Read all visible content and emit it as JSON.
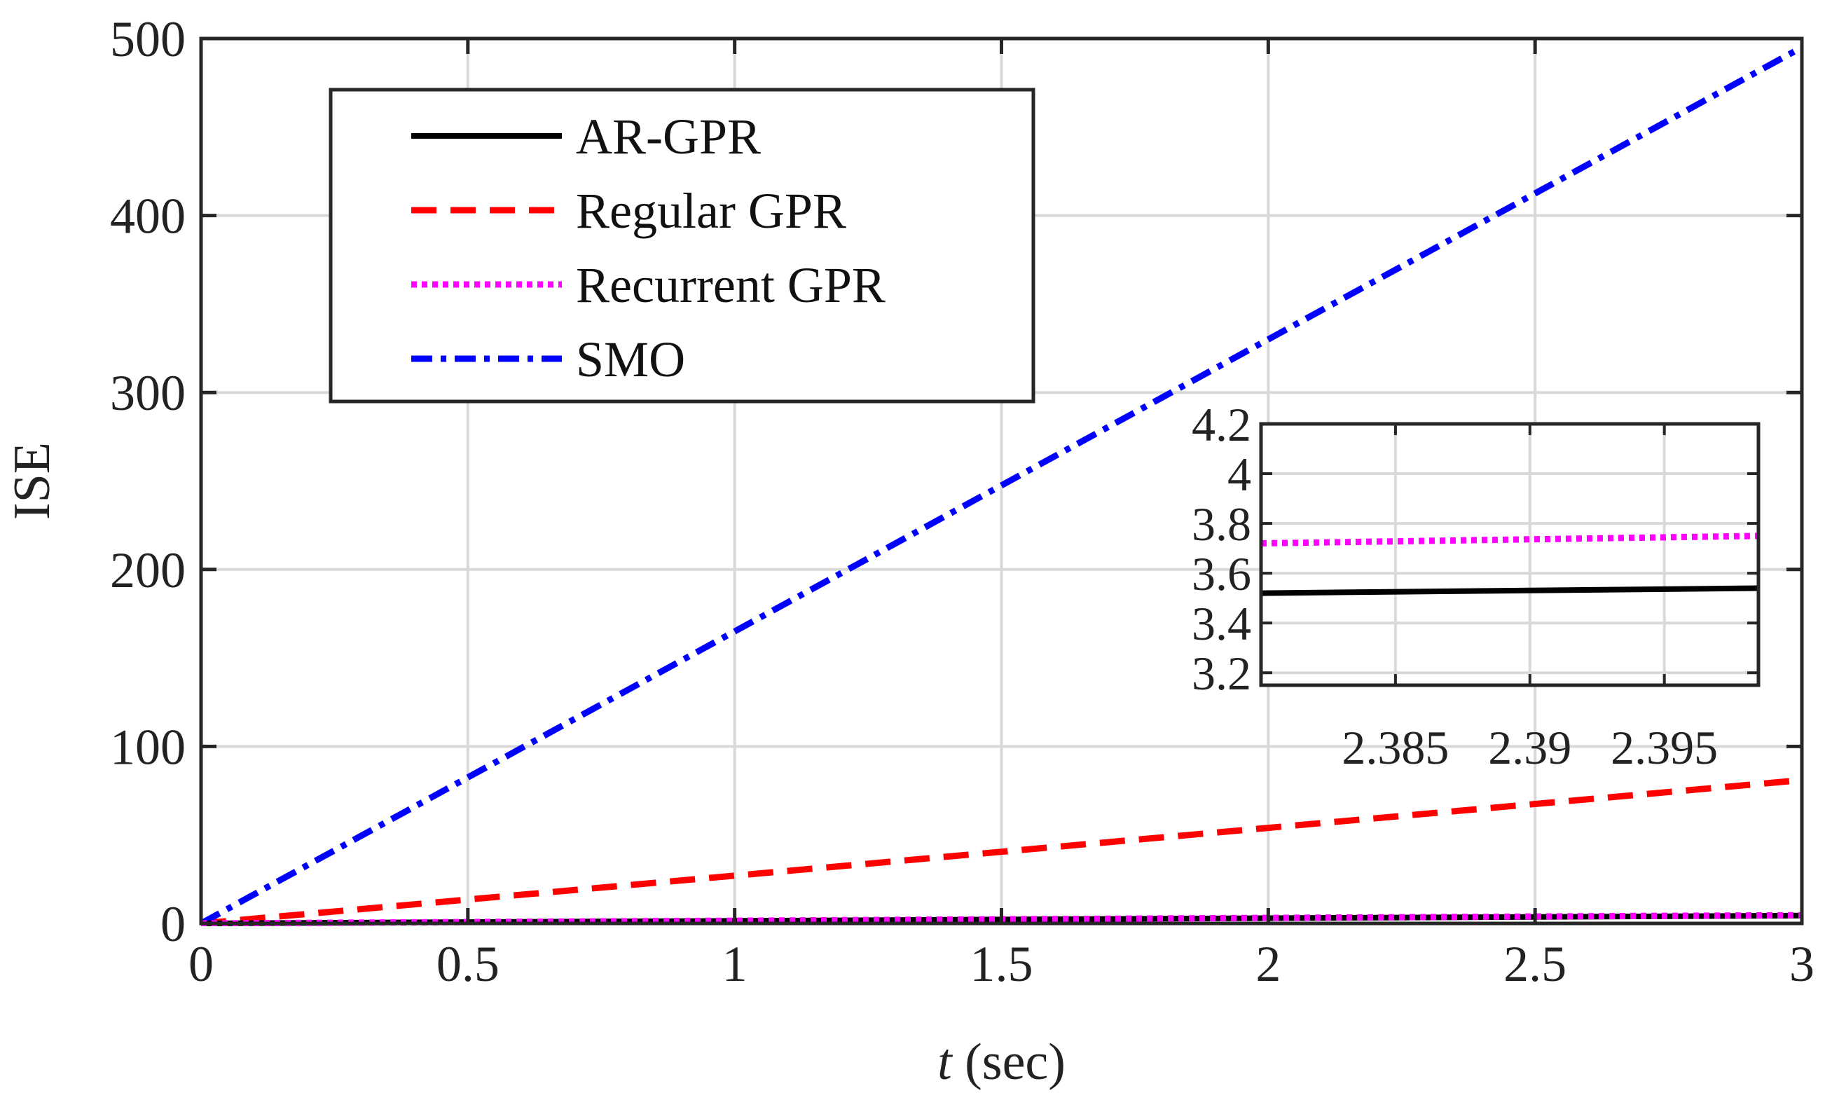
{
  "chart_data": {
    "type": "line",
    "title": "",
    "xlabel": {
      "italic": "t",
      "rest": " (sec)"
    },
    "ylabel": "ISE",
    "xlim": [
      0,
      3
    ],
    "ylim": [
      0,
      500
    ],
    "xticks": [
      0,
      0.5,
      1,
      1.5,
      2,
      2.5,
      3
    ],
    "xtick_labels": [
      "0",
      "0.5",
      "1",
      "1.5",
      "2",
      "2.5",
      "3"
    ],
    "yticks": [
      0,
      100,
      200,
      300,
      400,
      500
    ],
    "ytick_labels": [
      "0",
      "100",
      "200",
      "300",
      "400",
      "500"
    ],
    "grid": true,
    "legend_position": "top-left",
    "series": [
      {
        "name": "AR-GPR",
        "color": "#000000",
        "style": "solid",
        "x": [
          0,
          0.5,
          1,
          1.5,
          2,
          2.5,
          3
        ],
        "y": [
          0,
          0.74,
          1.48,
          2.22,
          2.96,
          3.7,
          4.44
        ]
      },
      {
        "name": "Regular GPR",
        "color": "#ff0000",
        "style": "dashed",
        "x": [
          0,
          0.5,
          1,
          1.5,
          2,
          2.5,
          3
        ],
        "y": [
          0,
          13.5,
          27,
          40.5,
          54,
          67.5,
          81
        ]
      },
      {
        "name": "Recurrent GPR",
        "color": "#ff00ff",
        "style": "dotted",
        "x": [
          0,
          0.5,
          1,
          1.5,
          2,
          2.5,
          3
        ],
        "y": [
          0,
          0.78,
          1.56,
          2.34,
          3.12,
          3.9,
          4.68
        ]
      },
      {
        "name": "SMO",
        "color": "#0000ff",
        "style": "dashdot",
        "x": [
          0,
          0.5,
          1,
          1.5,
          2,
          2.5,
          3
        ],
        "y": [
          0,
          82.5,
          165,
          247.5,
          330,
          412.5,
          495
        ]
      }
    ],
    "inset": {
      "xlim": [
        2.38,
        2.3985
      ],
      "ylim": [
        3.15,
        4.2
      ],
      "xticks": [
        2.385,
        2.39,
        2.395
      ],
      "xtick_labels": [
        "2.385",
        "2.39",
        "2.395"
      ],
      "yticks": [
        3.2,
        3.4,
        3.6,
        3.8,
        4.0,
        4.2
      ],
      "ytick_labels": [
        "3.2",
        "3.4",
        "3.6",
        "3.8",
        "4",
        "4.2"
      ],
      "series": [
        {
          "name": "AR-GPR",
          "color": "#000000",
          "style": "solid",
          "x": [
            2.38,
            2.3985
          ],
          "y": [
            3.52,
            3.54
          ]
        },
        {
          "name": "Recurrent GPR",
          "color": "#ff00ff",
          "style": "dotted",
          "x": [
            2.38,
            2.3985
          ],
          "y": [
            3.72,
            3.75
          ]
        }
      ]
    }
  }
}
